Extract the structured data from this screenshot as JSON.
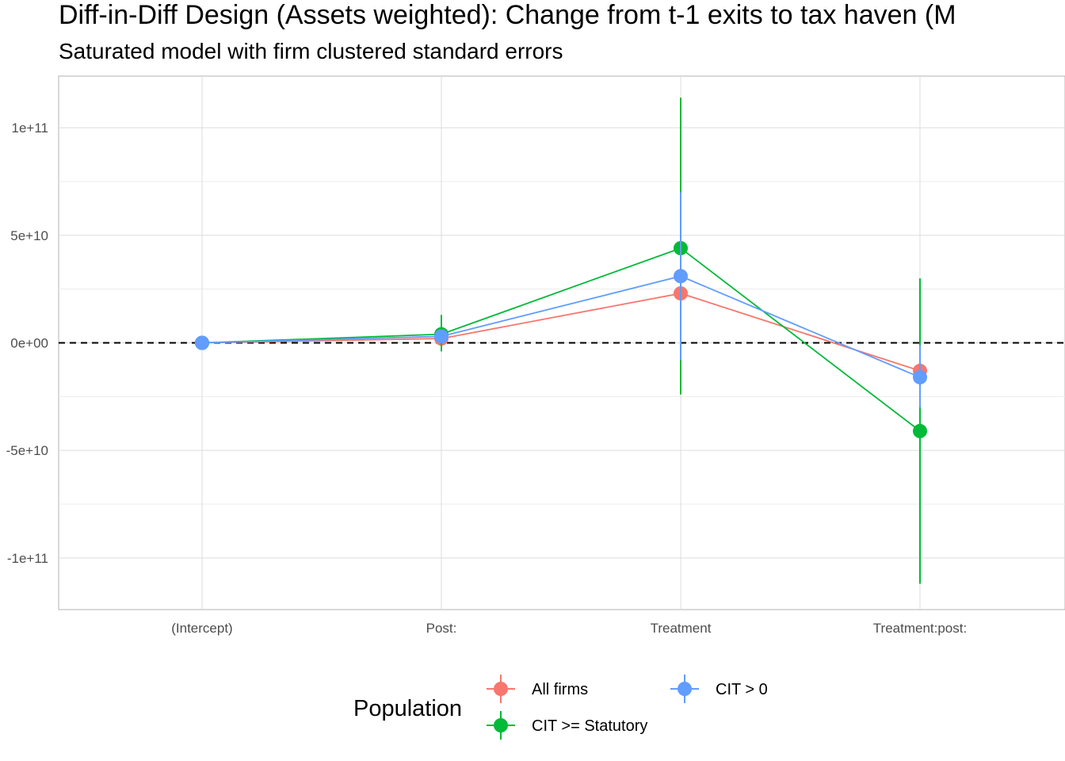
{
  "chart_data": {
    "type": "line",
    "title": "Diff-in-Diff Design (Assets weighted): Change from t-1 exits to tax haven (M",
    "subtitle": "Saturated model with firm clustered standard errors",
    "categories": [
      "(Intercept)",
      "Post:",
      "Treatment",
      "Treatment:post:"
    ],
    "y_ticks": [
      {
        "value": 100000000000,
        "label": "1e+11"
      },
      {
        "value": 50000000000,
        "label": "5e+10"
      },
      {
        "value": 0,
        "label": "0e+00"
      },
      {
        "value": -50000000000,
        "label": "-5e+10"
      },
      {
        "value": -100000000000,
        "label": "-1e+11"
      }
    ],
    "ylim": [
      -124000000000,
      124000000000
    ],
    "reference_line": 0,
    "grid": true,
    "legend": {
      "title": "Population",
      "position": "bottom"
    },
    "series": [
      {
        "name": "All firms",
        "color": "#F8766D",
        "values": [
          0,
          2000000000,
          23000000000,
          -13000000000
        ],
        "lower": [
          0,
          1000000000,
          23000000000,
          -13000000000
        ],
        "upper": [
          0,
          3000000000,
          23000000000,
          -13000000000
        ]
      },
      {
        "name": "CIT >= Statutory",
        "color": "#00BA38",
        "values": [
          0,
          4000000000,
          44000000000,
          -41000000000
        ],
        "lower": [
          0,
          -4000000000,
          -24000000000,
          -112000000000
        ],
        "upper": [
          0,
          13000000000,
          114000000000,
          30000000000
        ]
      },
      {
        "name": "CIT > 0",
        "color": "#619CFF",
        "values": [
          0,
          3000000000,
          31000000000,
          -16000000000
        ],
        "lower": [
          0,
          1000000000,
          -8000000000,
          -30000000000
        ],
        "upper": [
          0,
          5000000000,
          70000000000,
          -1000000000
        ]
      }
    ]
  }
}
